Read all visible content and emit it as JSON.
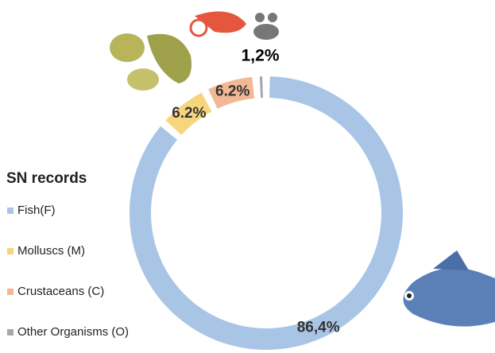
{
  "chart_data": {
    "type": "donut",
    "legend_title": "SN records",
    "labels": [
      "Fish(F)",
      "Molluscs (M)",
      "Crustaceans (C)",
      "Other Organisms (O)"
    ],
    "values": [
      86.4,
      6.2,
      6.2,
      1.2
    ],
    "value_labels": [
      "86,4%",
      "6.2%",
      "6.2%",
      "1,2%"
    ],
    "colors": [
      "#a9c5e6",
      "#f7d57c",
      "#f2b896",
      "#a8a8a8"
    ],
    "legend": "left"
  }
}
